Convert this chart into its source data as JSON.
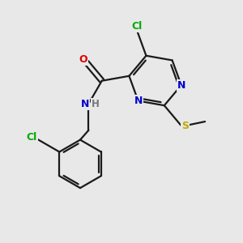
{
  "background_color": "#e8e8e8",
  "bond_color": "#1a1a1a",
  "line_width": 1.6,
  "atom_colors": {
    "C": "#000000",
    "N": "#0000cc",
    "O": "#dd0000",
    "S": "#bbaa00",
    "Cl": "#00aa00",
    "H": "#777777"
  },
  "figsize": [
    3.0,
    3.0
  ],
  "dpi": 100,
  "xlim": [
    0,
    10
  ],
  "ylim": [
    0,
    10
  ]
}
